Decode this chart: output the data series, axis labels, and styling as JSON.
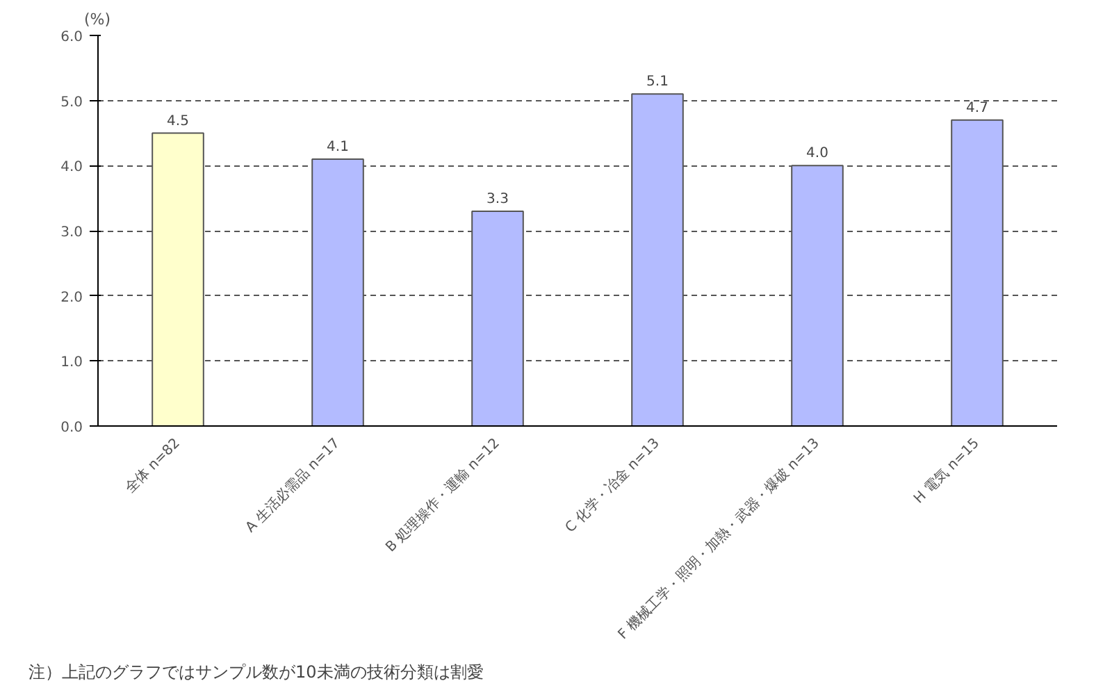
{
  "chart_data": {
    "type": "bar",
    "ylabel": "(%)",
    "categories": [
      "全体 n=82",
      "A 生活必需品 n=17",
      "B 処理操作・運輸 n=12",
      "C 化学・冶金 n=13",
      "F 機械工学・照明・加熱・武器・爆破 n=13",
      "H 電気 n=15"
    ],
    "values": [
      4.5,
      4.1,
      3.3,
      5.1,
      4.0,
      4.7
    ],
    "colors": [
      "#ffffcc",
      "#b3bbff",
      "#b3bbff",
      "#b3bbff",
      "#b3bbff",
      "#b3bbff"
    ],
    "ylim": [
      0,
      6
    ],
    "yticks": [
      {
        "value": 0,
        "label": "0.0"
      },
      {
        "value": 1,
        "label": "1.0"
      },
      {
        "value": 2,
        "label": "2.0"
      },
      {
        "value": 3,
        "label": "3.0"
      },
      {
        "value": 4,
        "label": "4.0"
      },
      {
        "value": 5,
        "label": "5.0"
      },
      {
        "value": 6,
        "label": "6.0"
      }
    ],
    "grid": "y",
    "value_labels": [
      "4.5",
      "4.1",
      "3.3",
      "5.1",
      "4.0",
      "4.7"
    ],
    "annotations": [
      "注）上記のグラフではサンプル数が10未満の技術分類は割愛"
    ]
  }
}
